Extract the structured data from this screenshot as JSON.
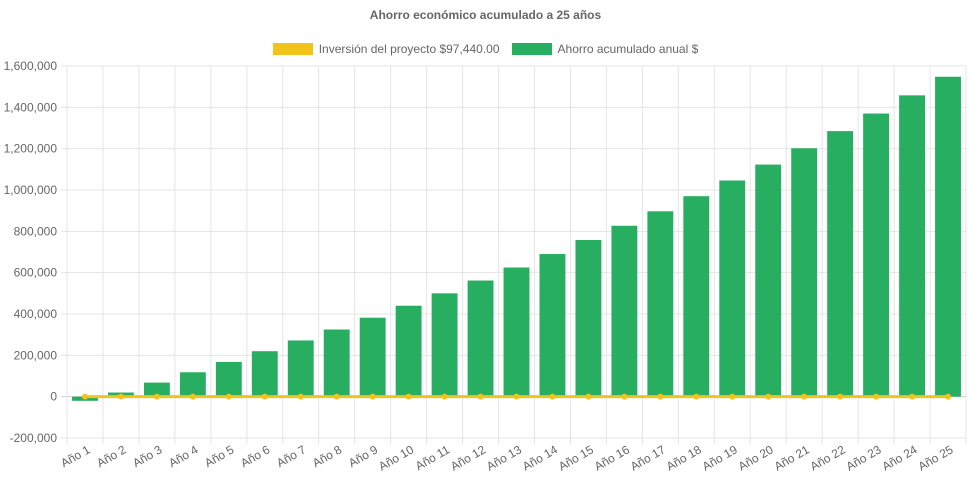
{
  "colors": {
    "investment": "#f2c31b",
    "savings": "#27ae60",
    "grid": "#e5e5e5",
    "text": "#666666"
  },
  "chart_data": {
    "type": "bar",
    "title": "Ahorro económico acumulado a 25 años",
    "xlabel": "",
    "ylabel": "",
    "ylim": [
      -200000,
      1600000
    ],
    "yticks": [
      "1,600,000",
      "1,400,000",
      "1,200,000",
      "1,000,000",
      "800,000",
      "600,000",
      "400,000",
      "200,000",
      "0",
      "-200,000"
    ],
    "categories": [
      "Año 1",
      "Año 2",
      "Año 3",
      "Año 4",
      "Año 5",
      "Año 6",
      "Año 7",
      "Año 8",
      "Año 9",
      "Año 10",
      "Año 11",
      "Año 12",
      "Año 13",
      "Año 14",
      "Año 15",
      "Año 16",
      "Año 17",
      "Año 18",
      "Año 19",
      "Año 20",
      "Año 21",
      "Año 22",
      "Año 23",
      "Año 24",
      "Año 25"
    ],
    "legend_position": "top",
    "grid": true,
    "series": [
      {
        "name": "Inversión del proyecto $97,440.00",
        "type": "line",
        "values": [
          0,
          0,
          0,
          0,
          0,
          0,
          0,
          0,
          0,
          0,
          0,
          0,
          0,
          0,
          0,
          0,
          0,
          0,
          0,
          0,
          0,
          0,
          0,
          0,
          0
        ]
      },
      {
        "name": "Ahorro acumulado anual $",
        "type": "bar",
        "values": [
          -20000,
          20000,
          68000,
          118000,
          168000,
          220000,
          272000,
          325000,
          382000,
          440000,
          500000,
          562000,
          625000,
          690000,
          758000,
          827000,
          897000,
          970000,
          1046000,
          1123000,
          1202000,
          1285000,
          1370000,
          1458000,
          1548000
        ]
      }
    ]
  }
}
